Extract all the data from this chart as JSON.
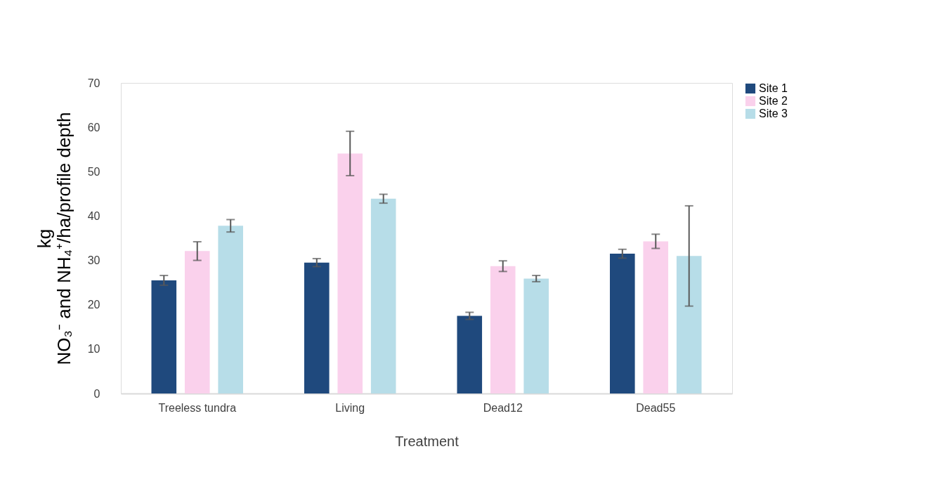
{
  "chart_data": {
    "type": "bar",
    "xlabel": "Treatment",
    "ylabel": "kg\nNO₃⁻ and NH₄⁺/ha/profile depth",
    "categories": [
      "Treeless tundra",
      "Living",
      "Dead12",
      "Dead55"
    ],
    "series": [
      {
        "name": "Site 1",
        "color": "#1f497d",
        "values": [
          25.5,
          29.5,
          17.5,
          31.5
        ],
        "errors": [
          1.1,
          0.9,
          0.8,
          1.0
        ]
      },
      {
        "name": "Site 2",
        "color": "#fad1ec",
        "values": [
          32.1,
          54.1,
          28.7,
          34.3
        ],
        "errors": [
          2.1,
          5.0,
          1.2,
          1.6
        ]
      },
      {
        "name": "Site 3",
        "color": "#b7dde8",
        "values": [
          37.8,
          43.9,
          25.9,
          31.0
        ],
        "errors": [
          1.4,
          1.0,
          0.7,
          11.3
        ]
      }
    ],
    "ylim": [
      0,
      70
    ],
    "yticks": [
      0,
      10,
      20,
      30,
      40,
      50,
      60,
      70
    ],
    "grid": false,
    "legend": "right"
  }
}
